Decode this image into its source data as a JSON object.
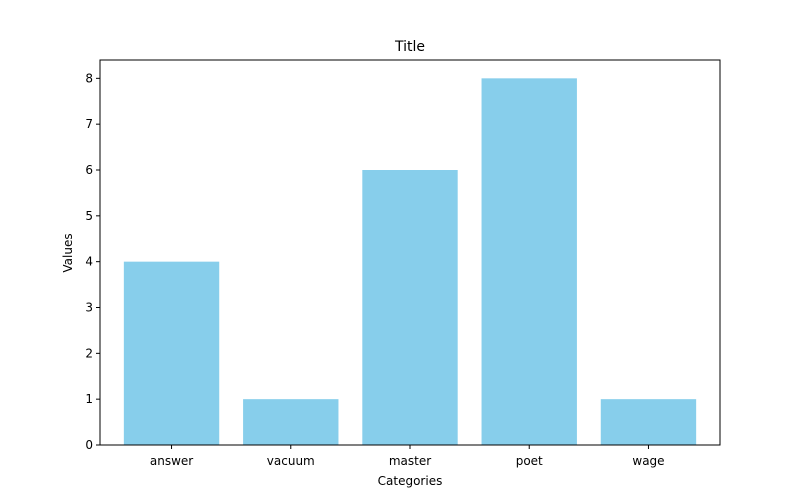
{
  "chart_data": {
    "type": "bar",
    "title": "Title",
    "xlabel": "Categories",
    "ylabel": "Values",
    "categories": [
      "answer",
      "vacuum",
      "master",
      "poet",
      "wage"
    ],
    "values": [
      4,
      1,
      6,
      8,
      1
    ],
    "yticks": [
      0,
      1,
      2,
      3,
      4,
      5,
      6,
      7,
      8
    ],
    "ylim": [
      0,
      8.4
    ],
    "bar_color": "#87CEEB",
    "grid": false,
    "legend": "none"
  }
}
